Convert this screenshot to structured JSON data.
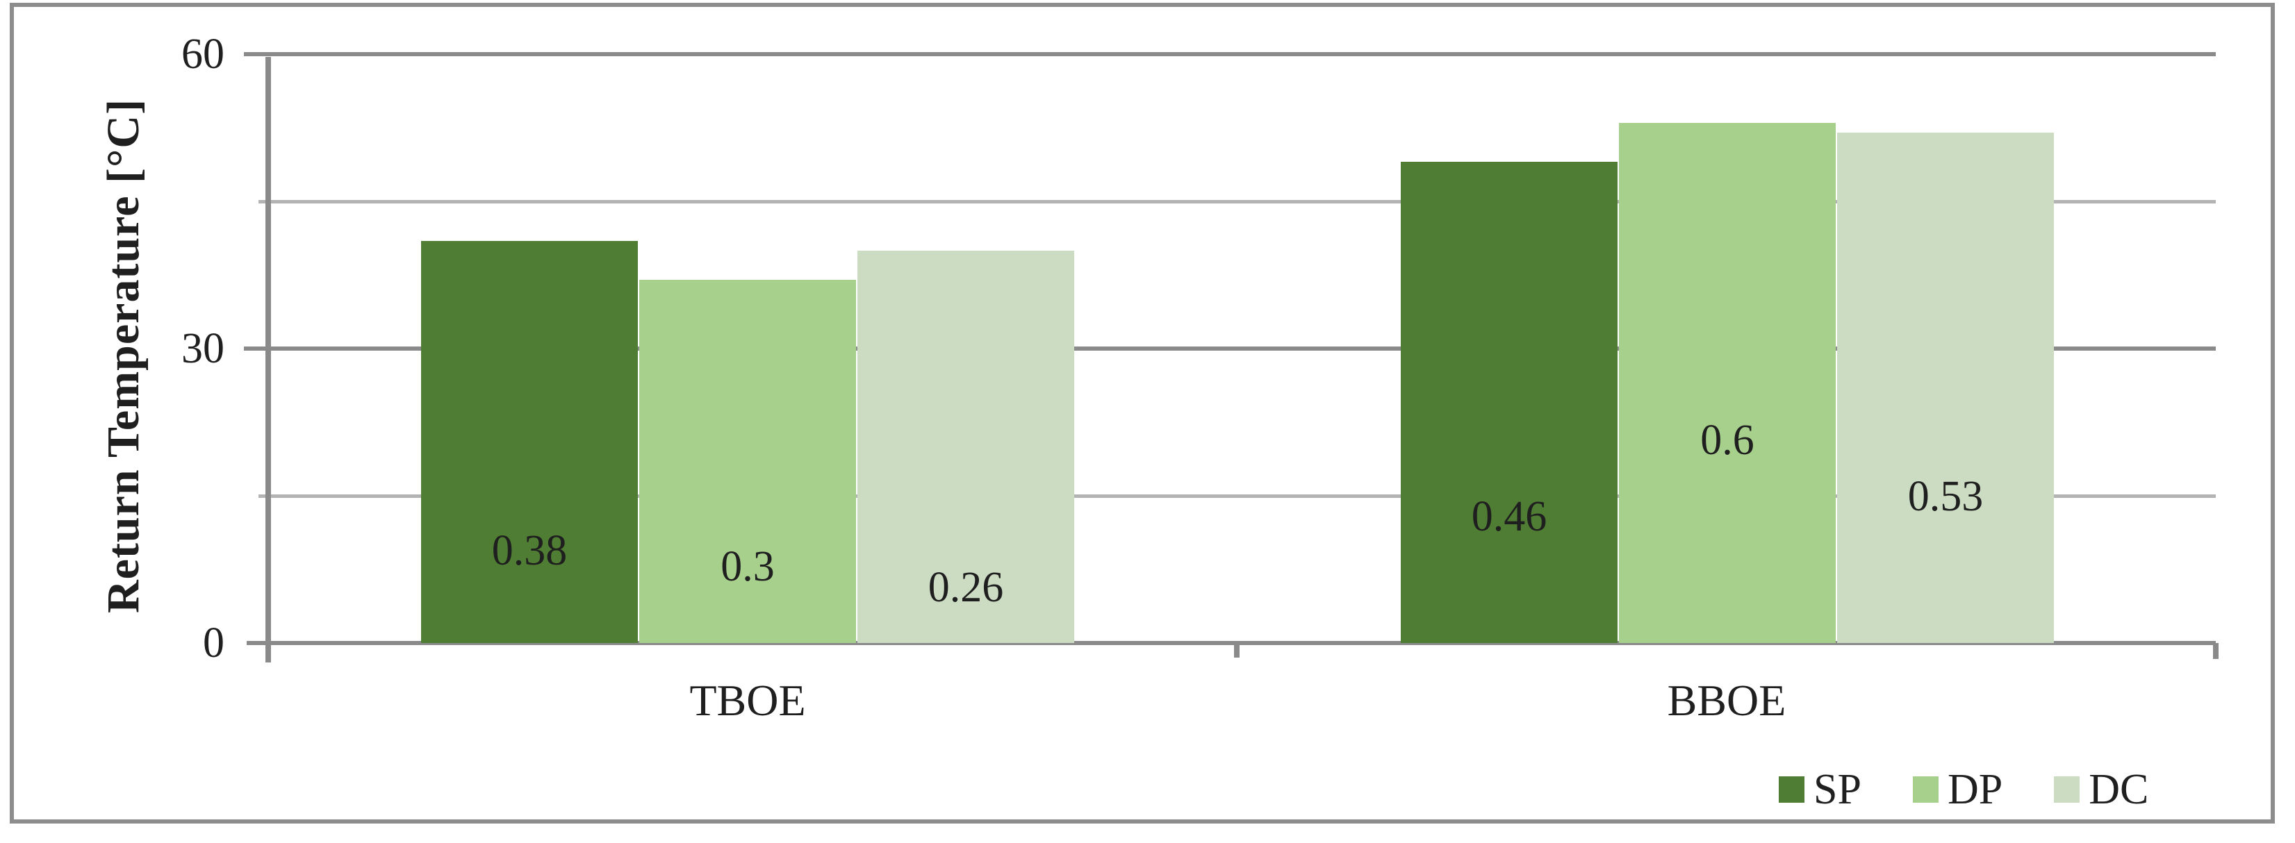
{
  "chart_data": {
    "type": "bar",
    "title": "",
    "ylabel": "Return Temperature [°C]",
    "xlabel": "",
    "categories": [
      "TBOE",
      "BBOE"
    ],
    "series": [
      {
        "name": "SP",
        "color": "#4f7d33",
        "values": [
          41,
          49
        ],
        "bar_labels": [
          "0.38",
          "0.46"
        ]
      },
      {
        "name": "DP",
        "color": "#a8d08d",
        "values": [
          37,
          53
        ],
        "bar_labels": [
          "0.3",
          "0.6"
        ]
      },
      {
        "name": "DC",
        "color": "#cbdcc3",
        "values": [
          40,
          52
        ],
        "bar_labels": [
          "0.26",
          "0.53"
        ]
      }
    ],
    "ylim": [
      0,
      60
    ],
    "yticks": [
      0,
      30,
      60
    ],
    "gridlines_y": [
      15,
      30,
      45,
      60
    ],
    "grid": true,
    "legend_position": "bottom-right",
    "colors": {
      "axis_line": "#8a8a8a",
      "major_gridline": "#8a8a8a",
      "minor_gridline": "#b3b3b3",
      "frame_border": "#8d8d8d",
      "text": "#1f1f1f"
    }
  }
}
